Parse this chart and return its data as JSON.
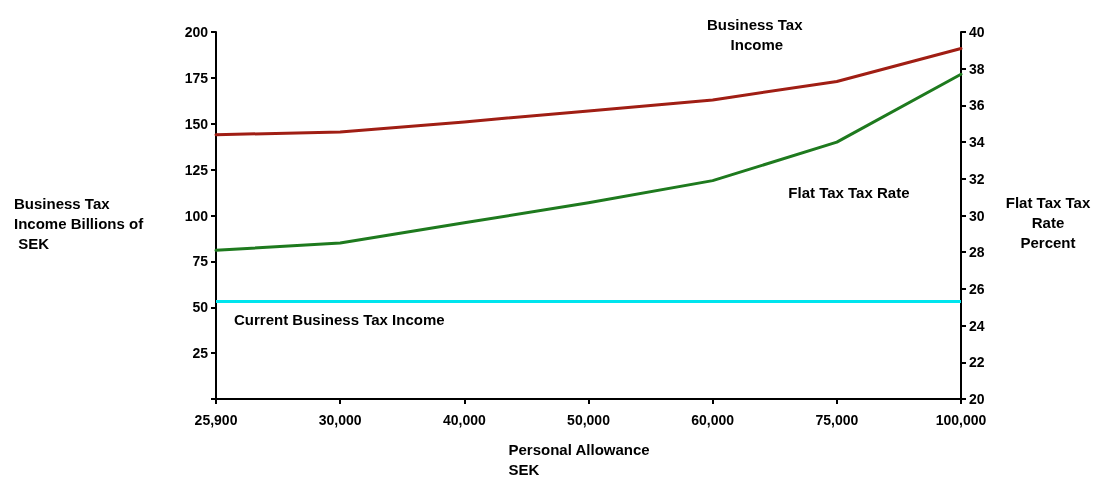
{
  "chart_data": {
    "type": "line",
    "xlabel": "Personal Allowance SEK",
    "ylabel": "Business Tax Income Billions of SEK",
    "y2label": "Flat Tax Tax Rate Percent",
    "categories": [
      "25,900",
      "30,000",
      "40,000",
      "50,000",
      "60,000",
      "75,000",
      "100,000"
    ],
    "series": [
      {
        "name": "Business Tax Income",
        "color": "#a01e14",
        "values": [
          144,
          145.5,
          151,
          157,
          163,
          173,
          191
        ]
      },
      {
        "name": "Flat Tax Tax Rate",
        "color": "#1e7a1e",
        "axis": "y2",
        "values": [
          28.1,
          28.5,
          29.6,
          30.7,
          31.9,
          34.0,
          37.7
        ]
      }
    ],
    "ylim": [
      0,
      200
    ],
    "yticks": [
      {
        "value": 0,
        "label": null
      },
      25,
      50,
      75,
      100,
      125,
      150,
      175,
      200
    ],
    "y2lim": [
      20,
      40
    ],
    "y2ticks": [
      20,
      22,
      24,
      26,
      28,
      30,
      32,
      34,
      36,
      38,
      40
    ],
    "ref_lines": [
      {
        "axis": "y",
        "value": 53,
        "label": "Current Business Tax Income",
        "color": "#00e5ee",
        "line_style": "solid"
      }
    ],
    "grid": false,
    "legend": false,
    "marker": "none",
    "line_style": "solid"
  }
}
